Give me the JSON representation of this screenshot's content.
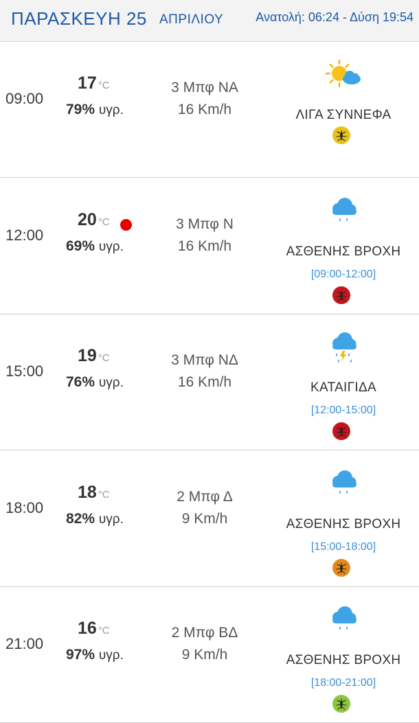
{
  "header": {
    "day": "ΠΑΡΑΣΚΕΥΗ 25",
    "month": "ΑΠΡΙΛΙΟΥ",
    "sun": "Ανατολή: 06:24  - Δύση 19:54"
  },
  "unit": "°C",
  "hum_unit": "υγρ.",
  "rows": [
    {
      "time": "09:00",
      "temp": "17",
      "humidity": "79%",
      "wind": "3 Μπφ ΝΑ",
      "speed": "16 Km/h",
      "icon": "partly-cloudy-icon",
      "desc": "ΛΙΓΑ ΣΥΝΝΕΦΑ",
      "period": "",
      "mosquito_color": "#e8c21c",
      "max_dot": false
    },
    {
      "time": "12:00",
      "temp": "20",
      "humidity": "69%",
      "wind": "3 Μπφ Ν",
      "speed": "16 Km/h",
      "icon": "light-rain-icon",
      "desc": "ΑΣΘΕΝΗΣ ΒΡΟΧΗ",
      "period": "[09:00-12:00]",
      "mosquito_color": "#c4161c",
      "max_dot": true
    },
    {
      "time": "15:00",
      "temp": "19",
      "humidity": "76%",
      "wind": "3 Μπφ ΝΔ",
      "speed": "16 Km/h",
      "icon": "thunderstorm-icon",
      "desc": "ΚΑΤΑΙΓΙΔΑ",
      "period": "[12:00-15:00]",
      "mosquito_color": "#c4161c",
      "max_dot": false
    },
    {
      "time": "18:00",
      "temp": "18",
      "humidity": "82%",
      "wind": "2 Μπφ Δ",
      "speed": "9 Km/h",
      "icon": "light-rain-icon",
      "desc": "ΑΣΘΕΝΗΣ ΒΡΟΧΗ",
      "period": "[15:00-18:00]",
      "mosquito_color": "#e28a1f",
      "max_dot": false
    },
    {
      "time": "21:00",
      "temp": "16",
      "humidity": "97%",
      "wind": "2 Μπφ ΒΔ",
      "speed": "9 Km/h",
      "icon": "light-rain-icon",
      "desc": "ΑΣΘΕΝΗΣ ΒΡΟΧΗ",
      "period": "[18:00-21:00]",
      "mosquito_color": "#8cc63f",
      "max_dot": false
    }
  ]
}
